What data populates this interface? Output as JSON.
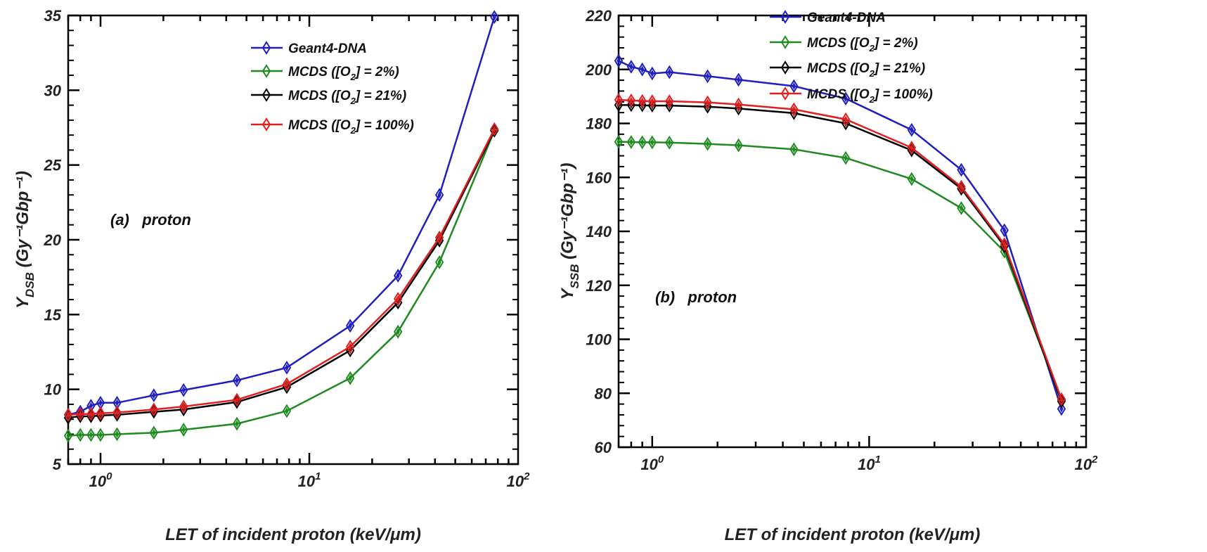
{
  "chart_data": [
    {
      "type": "line",
      "panel": "a",
      "annotation": "(a)   proton",
      "xlabel": "LET of incident proton (keV/μm)",
      "ylabel_main": "Y",
      "ylabel_sub": "DSB",
      "ylabel_unit": "(Gy⁻¹Gbp⁻¹)",
      "xscale": "log",
      "xlim": [
        0.7,
        100
      ],
      "ylim": [
        5,
        35
      ],
      "yticks": [
        5,
        10,
        15,
        20,
        25,
        30,
        35
      ],
      "xticks": [
        {
          "value": 1,
          "base": "10",
          "exp": "0"
        },
        {
          "value": 10,
          "base": "10",
          "exp": "1"
        },
        {
          "value": 100,
          "base": "10",
          "exp": "2"
        }
      ],
      "legend_position": "top-center",
      "x": [
        0.7,
        0.8,
        0.9,
        1.0,
        1.2,
        1.8,
        2.5,
        4.5,
        7.8,
        15.7,
        26.6,
        42,
        77
      ],
      "series": [
        {
          "name": "Geant4-DNA",
          "label_parts": [
            "Geant4-DNA"
          ],
          "color": "#1f1fbf",
          "values": [
            8.3,
            8.5,
            8.9,
            9.1,
            9.1,
            9.6,
            9.95,
            10.6,
            11.45,
            14.25,
            17.6,
            23.0,
            34.9
          ]
        },
        {
          "name": "MCDS ([O2] = 2%)",
          "label_parts": [
            "MCDS ([O",
            "2",
            "] = 2%)"
          ],
          "color": "#1f8a1f",
          "values": [
            6.9,
            6.95,
            6.95,
            6.95,
            7.0,
            7.1,
            7.3,
            7.7,
            8.55,
            10.75,
            13.85,
            18.5,
            27.3
          ]
        },
        {
          "name": "MCDS ([O2] = 21%)",
          "label_parts": [
            "MCDS ([O",
            "2",
            "] = 21%)"
          ],
          "color": "#000000",
          "values": [
            8.1,
            8.2,
            8.2,
            8.25,
            8.3,
            8.5,
            8.65,
            9.15,
            10.15,
            12.6,
            15.8,
            19.95,
            27.3
          ]
        },
        {
          "name": "MCDS ([O2] = 100%)",
          "label_parts": [
            "MCDS ([O",
            "2",
            "] = 100%)"
          ],
          "color": "#e01f1f",
          "values": [
            8.3,
            8.35,
            8.35,
            8.4,
            8.45,
            8.65,
            8.85,
            9.3,
            10.35,
            12.85,
            16.05,
            20.15,
            27.4
          ]
        }
      ]
    },
    {
      "type": "line",
      "panel": "b",
      "annotation": "(b)   proton",
      "xlabel": "LET of incident proton (keV/μm)",
      "ylabel_main": "Y",
      "ylabel_sub": "SSB",
      "ylabel_unit": "(Gy⁻¹Gbp⁻¹)",
      "xscale": "log",
      "xlim": [
        0.7,
        100
      ],
      "ylim": [
        60,
        220
      ],
      "yticks": [
        60,
        80,
        100,
        120,
        140,
        160,
        180,
        200,
        220
      ],
      "xticks": [
        {
          "value": 1,
          "base": "10",
          "exp": "0"
        },
        {
          "value": 10,
          "base": "10",
          "exp": "1"
        },
        {
          "value": 100,
          "base": "10",
          "exp": "2"
        }
      ],
      "legend_position": "top-right",
      "x": [
        0.7,
        0.8,
        0.9,
        1.0,
        1.2,
        1.8,
        2.5,
        4.5,
        7.8,
        15.7,
        26.6,
        42,
        77
      ],
      "series": [
        {
          "name": "Geant4-DNA",
          "label_parts": [
            "Geant4-DNA"
          ],
          "color": "#1f1fbf",
          "values": [
            203.2,
            201,
            200,
            198.5,
            199,
            197.5,
            196.2,
            193.8,
            189.2,
            177.6,
            162.8,
            140.4,
            74.2
          ]
        },
        {
          "name": "MCDS ([O2] = 2%)",
          "label_parts": [
            "MCDS ([O",
            "2",
            "] = 2%)"
          ],
          "color": "#1f8a1f",
          "values": [
            173.2,
            173.1,
            173,
            173,
            172.9,
            172.4,
            171.9,
            170.4,
            167.2,
            159.4,
            148.6,
            132.5,
            77.5
          ]
        },
        {
          "name": "MCDS ([O2] = 21%)",
          "label_parts": [
            "MCDS ([O",
            "2",
            "] = 21%)"
          ],
          "color": "#000000",
          "values": [
            186.8,
            186.8,
            186.7,
            186.6,
            186.6,
            186.2,
            185.5,
            183.8,
            180,
            170,
            155.8,
            134.5,
            77
          ]
        },
        {
          "name": "MCDS ([O2] = 100%)",
          "label_parts": [
            "MCDS ([O",
            "2",
            "] = 100%)"
          ],
          "color": "#e01f1f",
          "values": [
            188.7,
            188.5,
            188.3,
            188.2,
            188.2,
            187.8,
            187,
            185.2,
            181.5,
            171,
            156.5,
            135.2,
            77.8
          ]
        }
      ]
    }
  ]
}
